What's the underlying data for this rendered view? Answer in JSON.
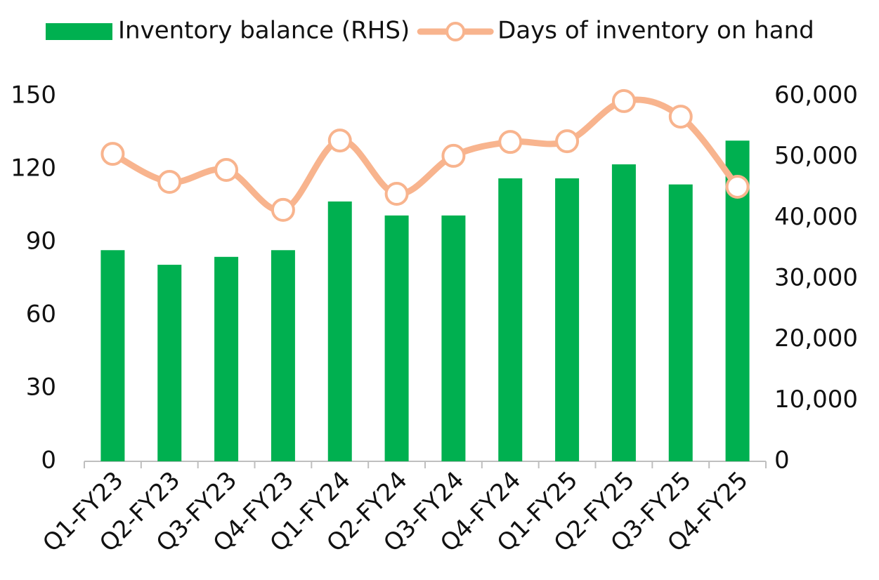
{
  "chart_data": {
    "type": "bar-line",
    "categories": [
      "Q1-FY23",
      "Q2-FY23",
      "Q3-FY23",
      "Q4-FY23",
      "Q1-FY24",
      "Q2-FY24",
      "Q3-FY24",
      "Q4-FY24",
      "Q1-FY25",
      "Q2-FY25",
      "Q3-FY25",
      "Q4-FY25"
    ],
    "series": [
      {
        "name": "Inventory balance (RHS)",
        "type": "bar",
        "axis": "y2",
        "color": "#00b050",
        "values": [
          34700,
          32300,
          33600,
          34700,
          42700,
          40400,
          40400,
          46500,
          46500,
          48800,
          45500,
          52700
        ]
      },
      {
        "name": "Days of inventory on hand",
        "type": "line",
        "color": "#f8b48e",
        "values": [
          126.3,
          114.8,
          119.7,
          103.3,
          131.8,
          109.9,
          125.5,
          131.2,
          131.5,
          148,
          141.6,
          112.8
        ]
      }
    ],
    "ylim": [
      0,
      150
    ],
    "yticks": [
      0,
      30,
      60,
      90,
      120,
      150
    ],
    "y2lim": [
      0,
      60000
    ],
    "y2ticks": [
      0,
      {
        "value": 10000,
        "label": "10,000"
      },
      {
        "value": 20000,
        "label": "20,000"
      },
      {
        "value": 30000,
        "label": "30,000"
      },
      {
        "value": 40000,
        "label": "40,000"
      },
      {
        "value": 50000,
        "label": "50,000"
      },
      {
        "value": 60000,
        "label": "60,000"
      }
    ],
    "grid": false
  }
}
